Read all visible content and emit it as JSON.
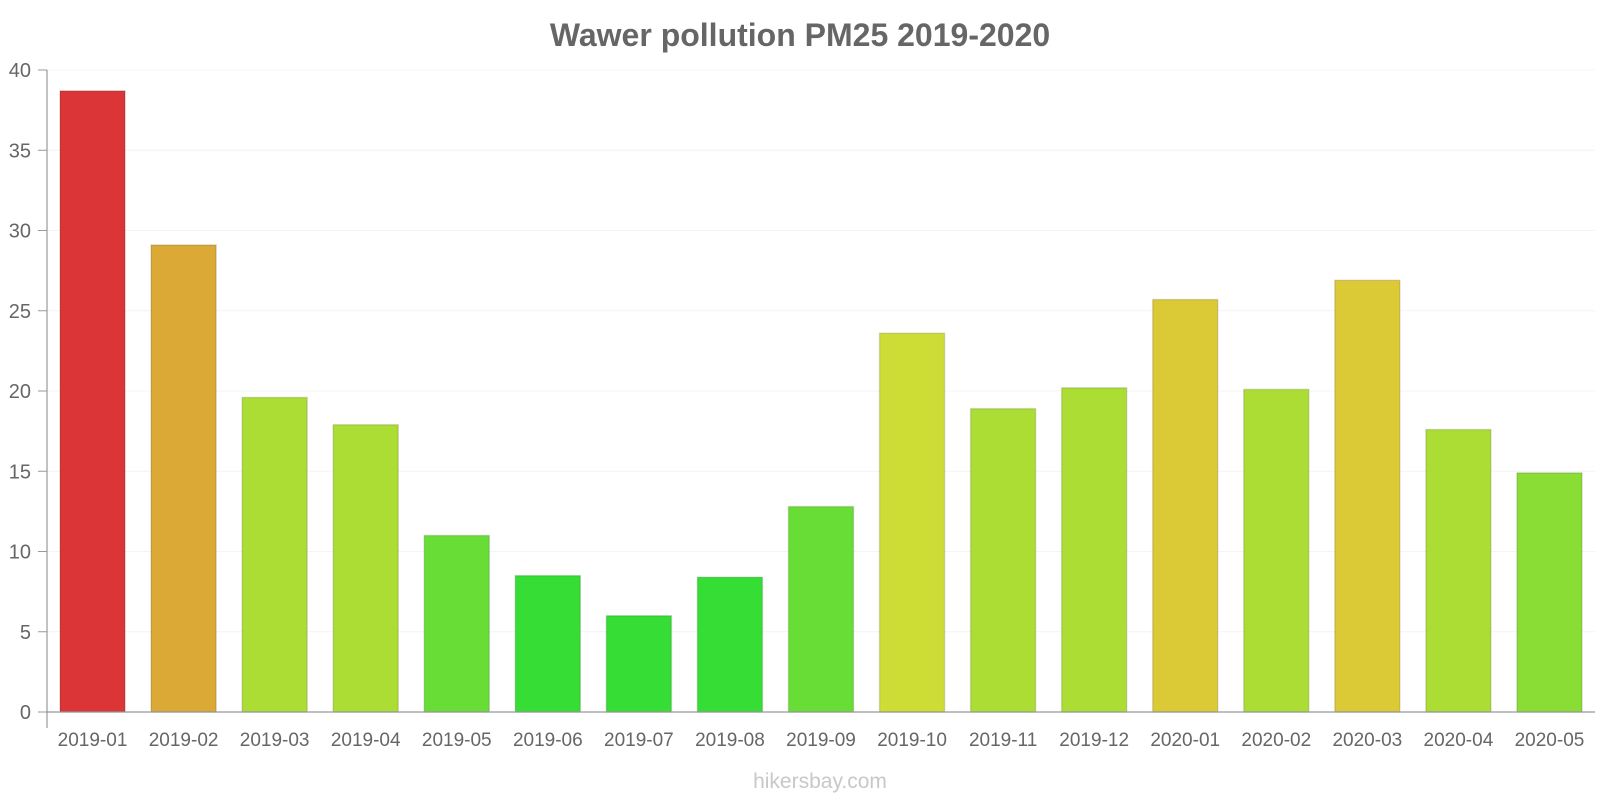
{
  "chart_data": {
    "type": "bar",
    "title": "Wawer pollution PM25 2019-2020",
    "xlabel": "",
    "ylabel": "",
    "ylim": [
      0,
      40
    ],
    "yticks": [
      0,
      5,
      10,
      15,
      20,
      25,
      30,
      35,
      40
    ],
    "grid": true,
    "categories": [
      "2019-01",
      "2019-02",
      "2019-03",
      "2019-04",
      "2019-05",
      "2019-06",
      "2019-07",
      "2019-08",
      "2019-09",
      "2019-10",
      "2019-11",
      "2019-12",
      "2020-01",
      "2020-02",
      "2020-03",
      "2020-04",
      "2020-05"
    ],
    "values": [
      38.7,
      29.1,
      19.6,
      17.9,
      11.0,
      8.5,
      6.0,
      8.4,
      12.8,
      23.6,
      18.9,
      20.2,
      25.7,
      20.1,
      26.9,
      17.6,
      14.9
    ],
    "colors": [
      "#db3537",
      "#dba935",
      "#acdd35",
      "#acdd35",
      "#68dd35",
      "#35dd35",
      "#35dd35",
      "#35dd35",
      "#68dd35",
      "#cedd35",
      "#acdd35",
      "#acdd35",
      "#dbc935",
      "#acdd35",
      "#dbc935",
      "#acdd35",
      "#89dd35"
    ]
  },
  "watermark": "hikersbay.com"
}
